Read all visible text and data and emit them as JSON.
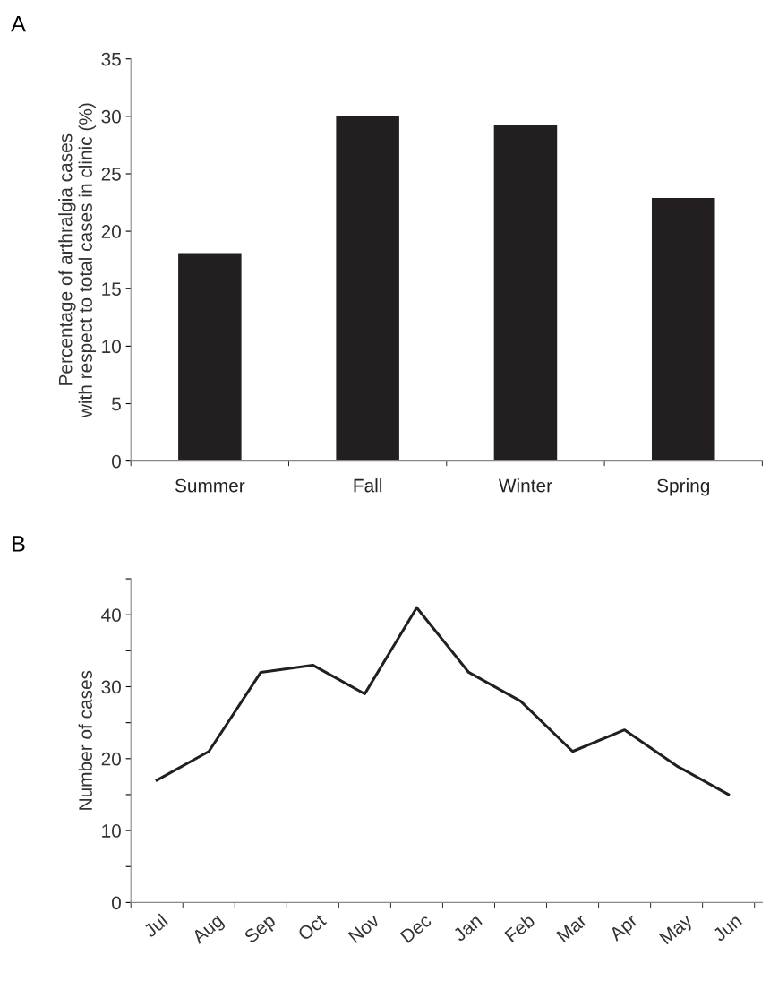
{
  "chart_data": [
    {
      "type": "bar",
      "title": "A",
      "ylabel": "Percentage of arthralgia cases\nwith respect to total cases in clinic (%)",
      "categories": [
        "Summer",
        "Fall",
        "Winter",
        "Spring"
      ],
      "series": [
        {
          "color": "#231f20",
          "values": [
            18.1,
            30,
            29.2,
            22.9
          ]
        }
      ],
      "ylim": [
        0,
        35
      ],
      "yticks": [
        0,
        5,
        10,
        15,
        20,
        25,
        30,
        35
      ],
      "grid": false
    },
    {
      "type": "line",
      "title": "B",
      "ylabel": "Number of cases",
      "categories": [
        "Jul",
        "Aug",
        "Sep",
        "Oct",
        "Nov",
        "Dec",
        "Jan",
        "Feb",
        "Mar",
        "Apr",
        "May",
        "Jun"
      ],
      "series": [
        {
          "color": "#231f20",
          "values": [
            17,
            21,
            32,
            33,
            29,
            41,
            32,
            28,
            21,
            24,
            19,
            15
          ]
        }
      ],
      "ylim": [
        0,
        45
      ],
      "yticks": [
        0,
        {
          "value": 5,
          "label": null
        },
        10,
        {
          "value": 15,
          "label": null
        },
        20,
        {
          "value": 25,
          "label": null
        },
        30,
        {
          "value": 35,
          "label": null
        },
        40,
        {
          "value": 45,
          "label": null
        }
      ],
      "grid": false,
      "marker": "none",
      "line_style": "solid"
    }
  ]
}
